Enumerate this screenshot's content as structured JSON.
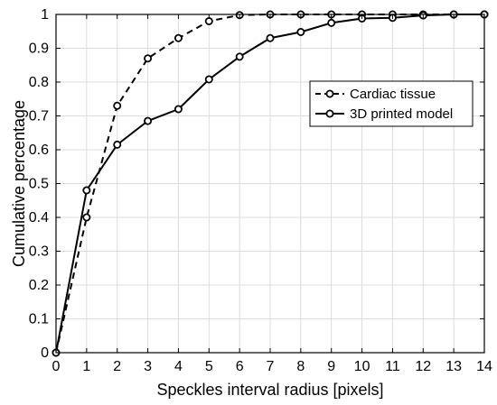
{
  "chart_data": {
    "type": "line",
    "title": "",
    "xlabel": "Speckles interval radius [pixels]",
    "ylabel": "Cumulative percentage",
    "xlim": [
      0,
      14
    ],
    "ylim": [
      0,
      1
    ],
    "x_ticks": [
      "0",
      "1",
      "2",
      "3",
      "4",
      "5",
      "6",
      "7",
      "8",
      "9",
      "10",
      "11",
      "12",
      "13",
      "14"
    ],
    "y_ticks": [
      "0",
      "0.1",
      "0.2",
      "0.3",
      "0.4",
      "0.5",
      "0.6",
      "0.7",
      "0.8",
      "0.9",
      "1"
    ],
    "grid": true,
    "legend_position": "center-right",
    "x": [
      0,
      1,
      2,
      3,
      4,
      5,
      6,
      7,
      8,
      9,
      10,
      11,
      12,
      13,
      14
    ],
    "series": [
      {
        "name": "Cardiac tissue",
        "style": "dashed",
        "marker": "circle",
        "color": "#000000",
        "values": [
          0,
          0.4,
          0.73,
          0.87,
          0.93,
          0.98,
          0.998,
          1.0,
          1.0,
          1.0,
          1.0,
          1.0,
          1.0,
          1.0,
          1.0
        ]
      },
      {
        "name": "3D printed model",
        "style": "solid",
        "marker": "circle",
        "color": "#000000",
        "values": [
          0,
          0.48,
          0.615,
          0.685,
          0.72,
          0.808,
          0.875,
          0.93,
          0.948,
          0.975,
          0.988,
          0.99,
          0.997,
          1.0,
          1.0
        ]
      }
    ]
  }
}
